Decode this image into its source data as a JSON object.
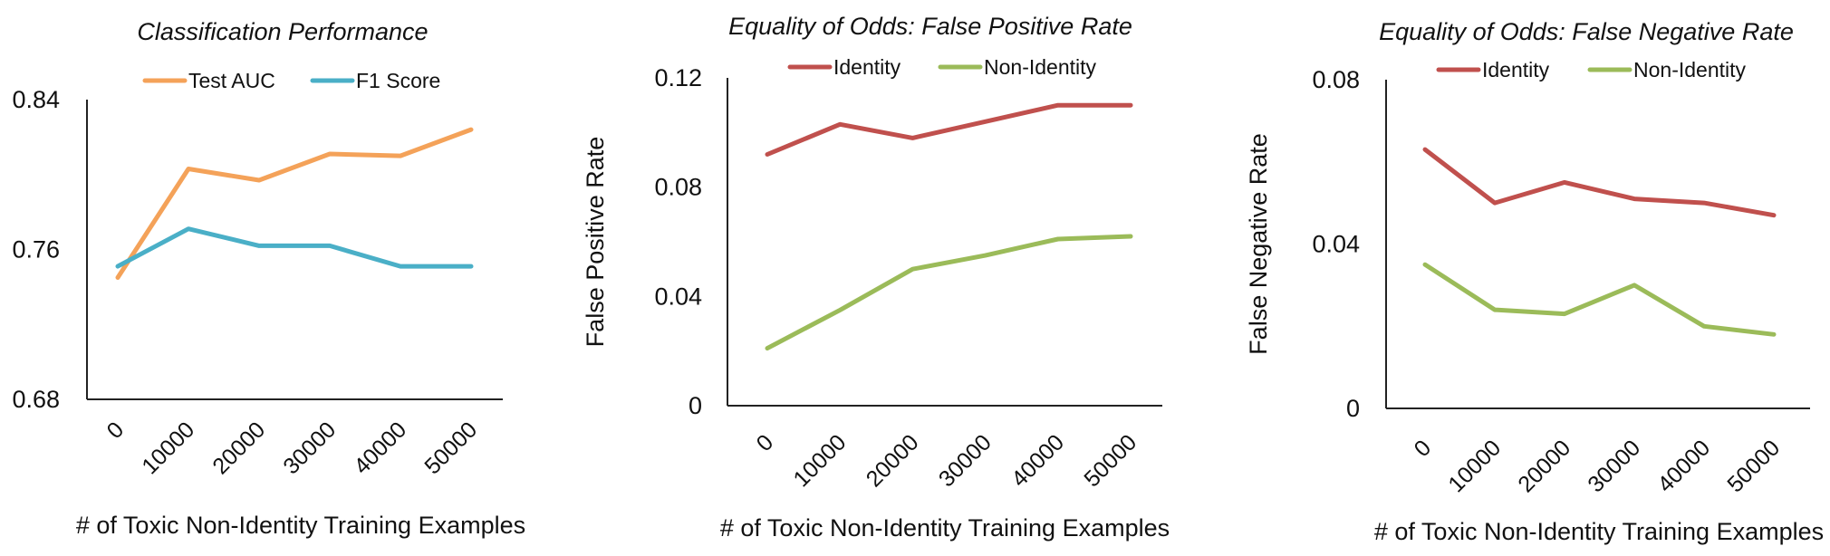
{
  "chart_data": [
    {
      "type": "line",
      "title": "Classification Performance",
      "xlabel": "# of Toxic Non-Identity Training Examples",
      "ylabel": "",
      "x": [
        0,
        10000,
        20000,
        30000,
        40000,
        50000
      ],
      "x_tick_labels": [
        "0",
        "10000",
        "20000",
        "30000",
        "40000",
        "50000"
      ],
      "ylim": [
        0.68,
        0.84
      ],
      "y_tick_labels": [
        "0.68",
        "0.76",
        "0.84"
      ],
      "legend_position": "top",
      "grid": false,
      "series": [
        {
          "name": "Test AUC",
          "color": "#F4A259",
          "values": [
            0.745,
            0.803,
            0.797,
            0.811,
            0.81,
            0.824
          ]
        },
        {
          "name": "F1 Score",
          "color": "#4AAFC7",
          "values": [
            0.751,
            0.771,
            0.762,
            0.762,
            0.751,
            0.751
          ]
        }
      ]
    },
    {
      "type": "line",
      "title": "Equality of Odds: False Positive Rate",
      "xlabel": "# of Toxic Non-Identity Training Examples",
      "ylabel": "False Positive Rate",
      "x": [
        0,
        10000,
        20000,
        30000,
        40000,
        50000
      ],
      "x_tick_labels": [
        "0",
        "10000",
        "20000",
        "30000",
        "40000",
        "50000"
      ],
      "ylim": [
        0,
        0.12
      ],
      "y_tick_labels": [
        "0",
        "0.04",
        "0.08",
        "0.12"
      ],
      "legend_position": "top",
      "grid": false,
      "series": [
        {
          "name": "Identity",
          "color": "#C0504D",
          "values": [
            0.092,
            0.103,
            0.098,
            0.104,
            0.11,
            0.11
          ]
        },
        {
          "name": "Non-Identity",
          "color": "#9BBB59",
          "values": [
            0.021,
            0.035,
            0.05,
            0.055,
            0.061,
            0.062
          ]
        }
      ]
    },
    {
      "type": "line",
      "title": "Equality of Odds: False Negative Rate",
      "xlabel": "# of Toxic Non-Identity Training Examples",
      "ylabel": "False Negative  Rate",
      "x": [
        0,
        10000,
        20000,
        30000,
        40000,
        50000
      ],
      "x_tick_labels": [
        "0",
        "10000",
        "20000",
        "30000",
        "40000",
        "50000"
      ],
      "ylim": [
        0,
        0.08
      ],
      "y_tick_labels": [
        "0",
        "0.04",
        "0.08"
      ],
      "legend_position": "top",
      "grid": false,
      "series": [
        {
          "name": "Identity",
          "color": "#C0504D",
          "values": [
            0.063,
            0.05,
            0.055,
            0.051,
            0.05,
            0.047
          ]
        },
        {
          "name": "Non-Identity",
          "color": "#9BBB59",
          "values": [
            0.035,
            0.024,
            0.023,
            0.03,
            0.02,
            0.018
          ]
        }
      ]
    }
  ]
}
